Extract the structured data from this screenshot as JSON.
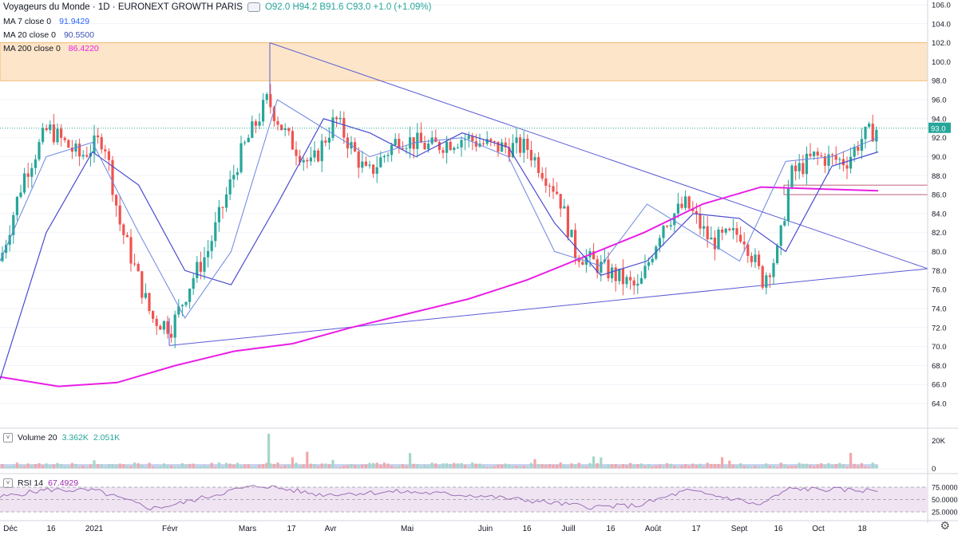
{
  "header": {
    "symbol": "Voyageurs du Monde · 1D · EURONEXT GROWTH PARIS",
    "open": "O92.0",
    "high": "H94.2",
    "low": "B91.6",
    "close": "C93.0",
    "change": "+1.0 (+1.09%)"
  },
  "indicators": [
    {
      "label": "MA 7 close 0",
      "value": "91.9429",
      "color": "#2962ff"
    },
    {
      "label": "MA 20 close 0",
      "value": "90.5500",
      "color": "#3f51b5"
    },
    {
      "label": "MA 200 close 0",
      "value": "86.4220",
      "color": "#e91ee5"
    }
  ],
  "price_axis": {
    "labels": [
      "106.0",
      "104.0",
      "102.0",
      "100.0",
      "98.0",
      "96.0",
      "94.0",
      "92.0",
      "90.0",
      "88.0",
      "86.0",
      "84.0",
      "82.0",
      "80.0",
      "78.0",
      "76.0",
      "74.0",
      "72.0",
      "70.0",
      "68.0",
      "66.0",
      "64.0"
    ],
    "last_price": "93.0"
  },
  "volume": {
    "label": "Volume 20",
    "v1": "3.362K",
    "v2": "2.051K",
    "axis": [
      "20K",
      "0"
    ]
  },
  "rsi": {
    "label": "RSI 14",
    "value": "67.4929",
    "axis": [
      "75.0000",
      "50.0000",
      "25.0000"
    ]
  },
  "time_axis": [
    "Déc",
    "16",
    "2021",
    "Févr",
    "Mars",
    "17",
    "Avr",
    "Mai",
    "Juin",
    "16",
    "Juill",
    "16",
    "Août",
    "17",
    "Sept",
    "16",
    "Oct",
    "18"
  ],
  "colors": {
    "up": "#26a69a",
    "down": "#ef5350",
    "ma200": "#e91ee5",
    "ma": "#5b6bd6",
    "zone": "#fce5c8",
    "rsi_band": "#f0e4f3"
  },
  "chart_data": {
    "type": "candlestick",
    "ylim": [
      62,
      107
    ],
    "resistance_zone": [
      98.0,
      102.0
    ],
    "last_price": 93.0,
    "ma200_points": [
      66.8,
      65.8,
      66.2,
      68.0,
      69.5,
      70.3,
      72.0,
      73.5,
      75.0,
      77.0,
      79.5,
      82.0,
      85.0,
      86.8,
      86.6,
      86.4
    ],
    "ma20_points": [
      66.5,
      82,
      90.5,
      87,
      78,
      76.5,
      85,
      94,
      92.5,
      90,
      92.5,
      91,
      83,
      77.5,
      79,
      84,
      83.5,
      80,
      89,
      90.5
    ],
    "ma7_points": [
      79,
      90,
      91.5,
      82,
      73,
      80,
      96,
      93,
      90,
      91.5,
      92,
      90,
      80,
      78.5,
      85,
      82,
      79,
      89.5,
      90,
      92
    ]
  }
}
